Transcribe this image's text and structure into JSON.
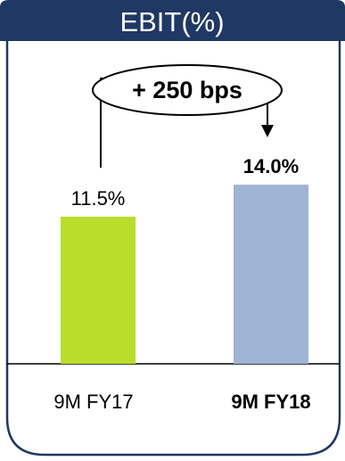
{
  "chart_data": {
    "type": "bar",
    "title": "EBIT(%)",
    "categories": [
      "9M FY17",
      "9M FY18"
    ],
    "values": [
      11.5,
      14.0
    ],
    "value_labels": [
      "11.5%",
      "14.0%"
    ],
    "bar_colors": [
      "#b8dd2a",
      "#9fb3d3"
    ],
    "annotation": "+ 250 bps",
    "emphasized_category_index": 1
  },
  "colors": {
    "header_bg": "#1f3864",
    "header_text": "#ffffff",
    "frame": "#1f3864"
  }
}
